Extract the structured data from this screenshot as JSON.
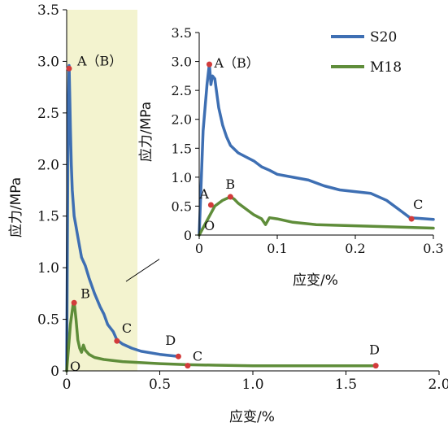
{
  "chart_data": [
    {
      "type": "line",
      "xlabel": "应变/%",
      "ylabel": "应力/MPa",
      "xlim": [
        0,
        2.0
      ],
      "ylim": [
        0,
        3.5
      ],
      "xticks": [
        "0",
        "0.5",
        "1.0",
        "1.5",
        "2.0"
      ],
      "yticks": [
        "0",
        "0.5",
        "1.0",
        "1.5",
        "2.0",
        "2.5",
        "3.0",
        "3.5"
      ],
      "highlight_region": {
        "x": [
          0,
          0.38
        ],
        "color": "#f3f3cf"
      },
      "series": [
        {
          "name": "S20",
          "color": "#3e6fb3",
          "x": [
            0,
            0.008,
            0.013,
            0.016,
            0.02,
            0.025,
            0.03,
            0.04,
            0.05,
            0.06,
            0.07,
            0.08,
            0.1,
            0.12,
            0.15,
            0.18,
            0.2,
            0.22,
            0.25,
            0.27,
            0.3,
            0.35,
            0.4,
            0.5,
            0.6
          ],
          "y": [
            0,
            2.5,
            2.96,
            2.7,
            2.35,
            2.0,
            1.75,
            1.5,
            1.4,
            1.3,
            1.2,
            1.1,
            1.02,
            0.9,
            0.75,
            0.62,
            0.55,
            0.45,
            0.38,
            0.3,
            0.26,
            0.22,
            0.19,
            0.16,
            0.14
          ]
        },
        {
          "name": "M18",
          "color": "#5f8d3a",
          "x": [
            0,
            0.02,
            0.035,
            0.04,
            0.05,
            0.06,
            0.07,
            0.08,
            0.09,
            0.1,
            0.12,
            0.15,
            0.2,
            0.3,
            0.4,
            0.5,
            0.65,
            0.8,
            1.0,
            1.2,
            1.4,
            1.66
          ],
          "y": [
            0,
            0.45,
            0.65,
            0.67,
            0.5,
            0.3,
            0.22,
            0.18,
            0.25,
            0.2,
            0.16,
            0.13,
            0.11,
            0.09,
            0.08,
            0.07,
            0.06,
            0.055,
            0.05,
            0.05,
            0.05,
            0.05
          ]
        }
      ],
      "points": [
        {
          "label": "A（B）",
          "x": 0.013,
          "y": 2.93
        },
        {
          "label": "C",
          "x": 0.27,
          "y": 0.29
        },
        {
          "label": "D",
          "x": 0.6,
          "y": 0.14
        },
        {
          "label": "B",
          "x": 0.04,
          "y": 0.66
        },
        {
          "label": "O",
          "x": 0.0,
          "y": 0.0
        },
        {
          "label": "C",
          "x": 0.65,
          "y": 0.05
        },
        {
          "label": "D",
          "x": 1.66,
          "y": 0.05
        }
      ]
    },
    {
      "type": "line",
      "xlabel": "应变/%",
      "ylabel": "应力/MPa",
      "xlim": [
        0,
        0.3
      ],
      "ylim": [
        0,
        3.5
      ],
      "xticks": [
        "0",
        "0.1",
        "0.2",
        "0.3"
      ],
      "yticks": [
        "0",
        "0.5",
        "1.0",
        "1.5",
        "2.0",
        "2.5",
        "3.0",
        "3.5"
      ],
      "legend_position": "top-right",
      "series": [
        {
          "name": "S20",
          "color": "#3e6fb3",
          "x": [
            0,
            0.005,
            0.01,
            0.013,
            0.015,
            0.017,
            0.02,
            0.025,
            0.03,
            0.035,
            0.04,
            0.05,
            0.06,
            0.07,
            0.08,
            0.09,
            0.1,
            0.12,
            0.14,
            0.16,
            0.18,
            0.2,
            0.22,
            0.24,
            0.26,
            0.27,
            0.28,
            0.3
          ],
          "y": [
            0,
            1.8,
            2.6,
            2.96,
            2.6,
            2.75,
            2.7,
            2.2,
            1.9,
            1.7,
            1.55,
            1.42,
            1.35,
            1.28,
            1.18,
            1.12,
            1.05,
            1.0,
            0.95,
            0.85,
            0.78,
            0.75,
            0.72,
            0.6,
            0.4,
            0.3,
            0.29,
            0.27
          ]
        },
        {
          "name": "M18",
          "color": "#5f8d3a",
          "x": [
            0,
            0.01,
            0.02,
            0.03,
            0.04,
            0.045,
            0.05,
            0.06,
            0.07,
            0.08,
            0.085,
            0.09,
            0.1,
            0.12,
            0.15,
            0.2,
            0.25,
            0.3
          ],
          "y": [
            0,
            0.25,
            0.5,
            0.6,
            0.66,
            0.62,
            0.55,
            0.45,
            0.35,
            0.28,
            0.18,
            0.3,
            0.28,
            0.22,
            0.18,
            0.16,
            0.14,
            0.12
          ]
        }
      ],
      "points": [
        {
          "label": "A（B）",
          "x": 0.013,
          "y": 2.95
        },
        {
          "label": "A",
          "x": 0.015,
          "y": 0.52
        },
        {
          "label": "B",
          "x": 0.04,
          "y": 0.66
        },
        {
          "label": "O",
          "x": 0.0,
          "y": 0.0
        },
        {
          "label": "C",
          "x": 0.272,
          "y": 0.28
        }
      ]
    }
  ]
}
